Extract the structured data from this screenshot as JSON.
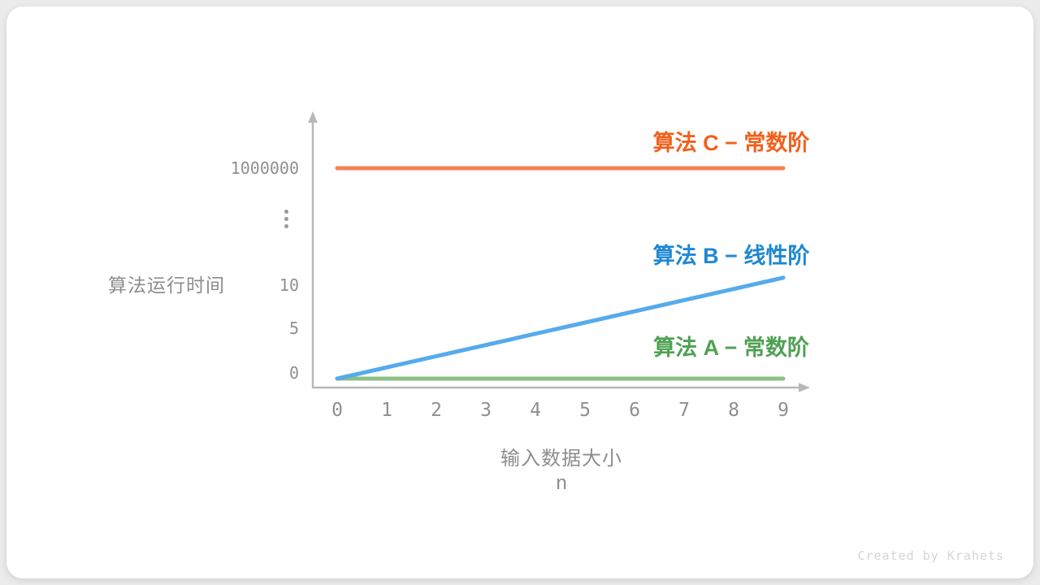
{
  "page": {
    "watermark": "Created by Krahets"
  },
  "chart_data": {
    "type": "line",
    "title": "",
    "x_axis": {
      "title_line1": "输入数据大小",
      "title_line2": "n",
      "ticks": [
        "0",
        "1",
        "2",
        "3",
        "4",
        "5",
        "6",
        "7",
        "8",
        "9"
      ],
      "range": [
        0,
        9
      ]
    },
    "y_axis": {
      "title": "算法运行时间",
      "ticks": [
        "1000000",
        "⋮",
        "10",
        "5",
        "0"
      ],
      "broken_axis": true
    },
    "series": [
      {
        "key": "C",
        "label": "算法 C − 常数阶",
        "line_color": "#F58254",
        "label_color": "#F2601C",
        "x": [
          0,
          9
        ],
        "values": [
          1000000,
          1000000
        ]
      },
      {
        "key": "B",
        "label": "算法 B − 线性阶",
        "line_color": "#55ABEB",
        "label_color": "#1E88D2",
        "x": [
          0,
          9
        ],
        "values": [
          0,
          10.8
        ]
      },
      {
        "key": "A",
        "label": "算法 A − 常数阶",
        "line_color": "#8CC084",
        "label_color": "#4FA153",
        "x": [
          0,
          9
        ],
        "values": [
          0,
          0
        ]
      }
    ]
  }
}
